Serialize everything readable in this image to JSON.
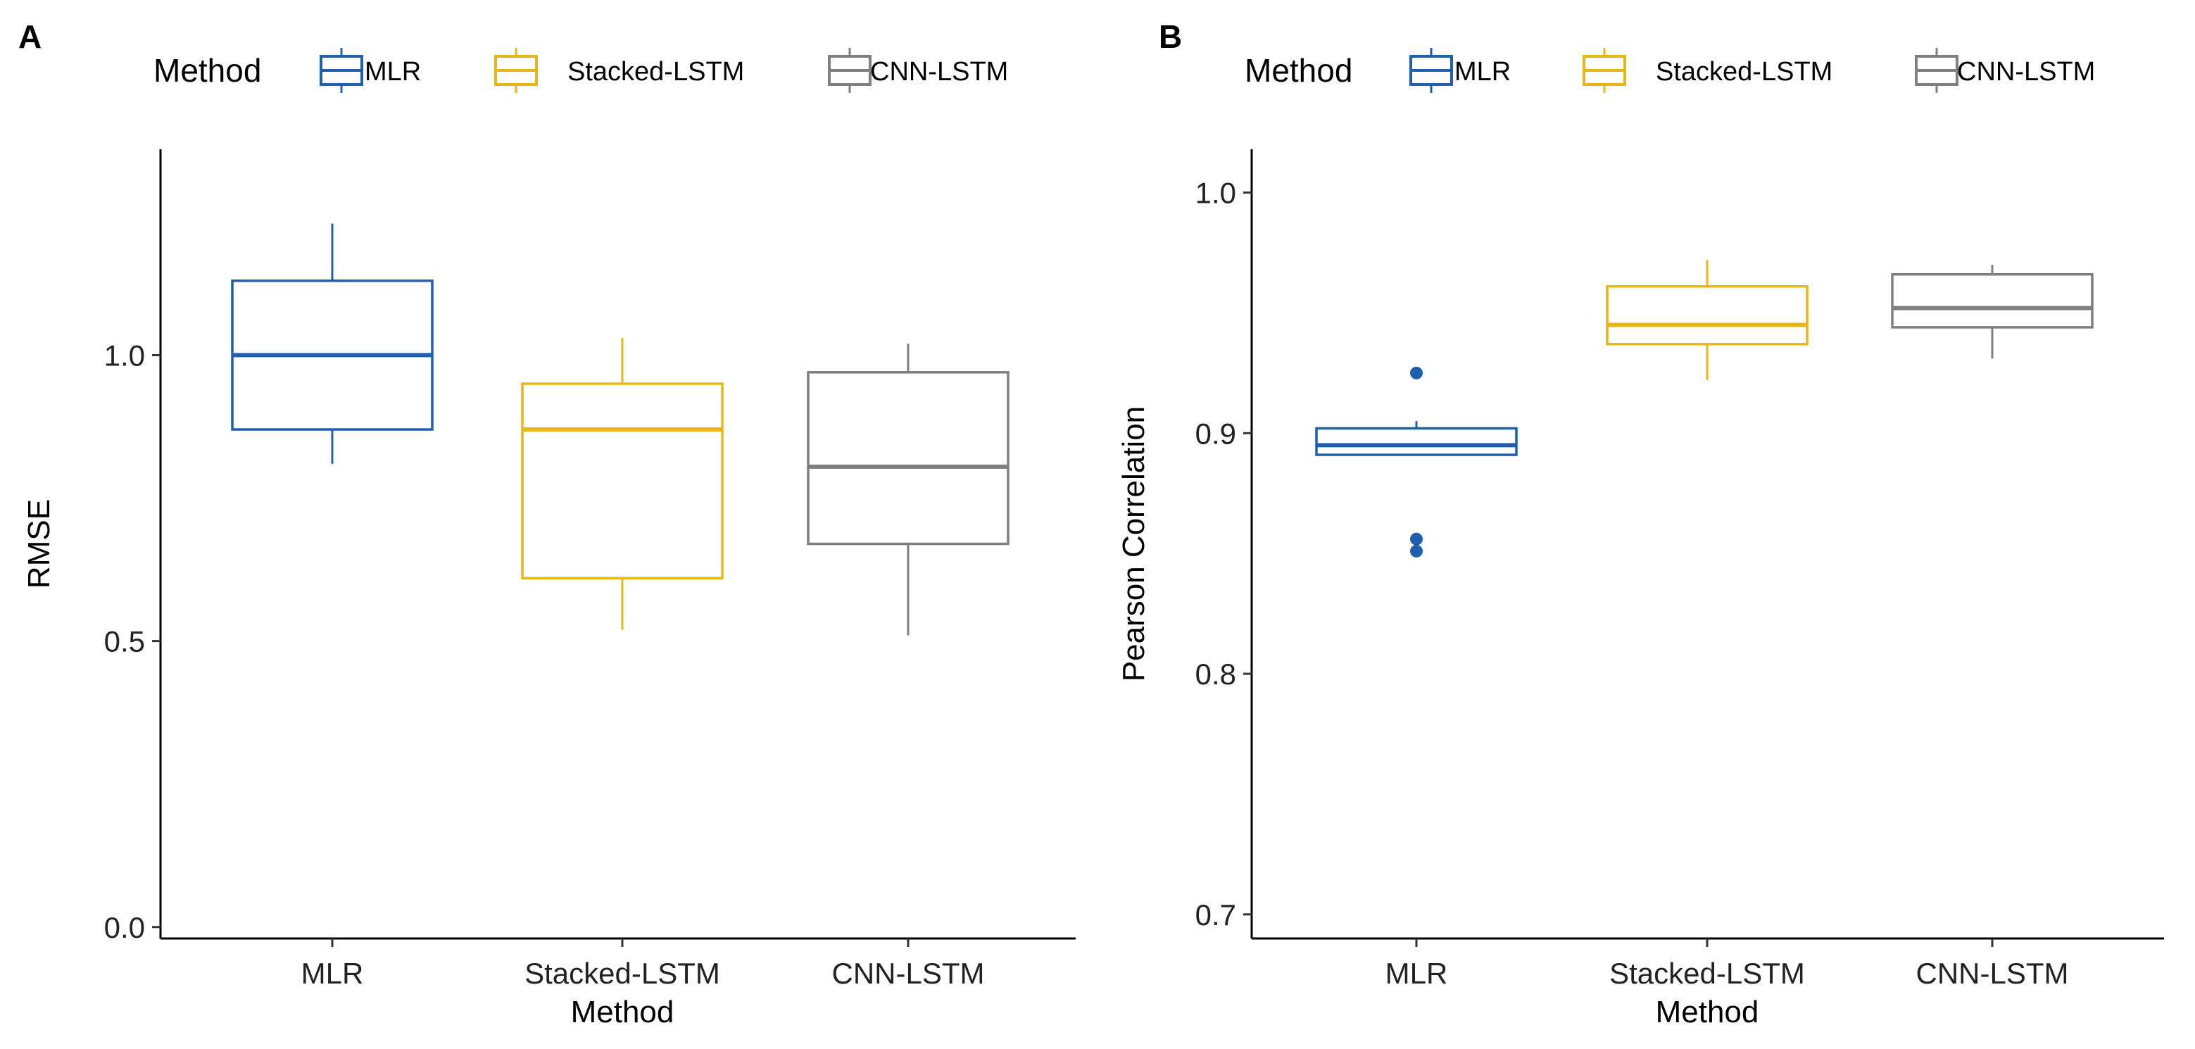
{
  "legend": {
    "title": "Method",
    "entries": [
      {
        "label": "MLR",
        "color": "#1F5FAD"
      },
      {
        "label": "Stacked-LSTM",
        "color": "#E8B716"
      },
      {
        "label": "CNN-LSTM",
        "color": "#7F7F7F"
      }
    ]
  },
  "chart_data": [
    {
      "type": "boxplot",
      "panel_label": "A",
      "xlabel": "Method",
      "ylabel": "RMSE",
      "categories": [
        "MLR",
        "Stacked-LSTM",
        "CNN-LSTM"
      ],
      "ylim": [
        -0.02,
        1.36
      ],
      "yticks": [
        0.0,
        0.5,
        1.0
      ],
      "ytick_labels": [
        "0.0",
        "0.5",
        "1.0"
      ],
      "boxes": [
        {
          "name": "MLR",
          "color": "#1F5FAD",
          "whisker_low": 0.81,
          "q1": 0.87,
          "median": 1.0,
          "q3": 1.13,
          "whisker_high": 1.23,
          "outliers": []
        },
        {
          "name": "Stacked-LSTM",
          "color": "#E8B716",
          "whisker_low": 0.52,
          "q1": 0.61,
          "median": 0.87,
          "q3": 0.95,
          "whisker_high": 1.03,
          "outliers": []
        },
        {
          "name": "CNN-LSTM",
          "color": "#7F7F7F",
          "whisker_low": 0.51,
          "q1": 0.67,
          "median": 0.805,
          "q3": 0.97,
          "whisker_high": 1.02,
          "outliers": []
        }
      ]
    },
    {
      "type": "boxplot",
      "panel_label": "B",
      "xlabel": "Method",
      "ylabel": "Pearson Correlation",
      "categories": [
        "MLR",
        "Stacked-LSTM",
        "CNN-LSTM"
      ],
      "ylim": [
        0.69,
        1.018
      ],
      "yticks": [
        0.7,
        0.8,
        0.9,
        1.0
      ],
      "ytick_labels": [
        "0.7",
        "0.8",
        "0.9",
        "1.0"
      ],
      "boxes": [
        {
          "name": "MLR",
          "color": "#1F5FAD",
          "whisker_low": 0.891,
          "q1": 0.891,
          "median": 0.895,
          "q3": 0.902,
          "whisker_high": 0.905,
          "outliers": [
            0.925,
            0.856,
            0.851
          ]
        },
        {
          "name": "Stacked-LSTM",
          "color": "#E8B716",
          "whisker_low": 0.922,
          "q1": 0.937,
          "median": 0.945,
          "q3": 0.961,
          "whisker_high": 0.972,
          "outliers": []
        },
        {
          "name": "CNN-LSTM",
          "color": "#7F7F7F",
          "whisker_low": 0.931,
          "q1": 0.944,
          "median": 0.952,
          "q3": 0.966,
          "whisker_high": 0.97,
          "outliers": []
        }
      ]
    }
  ]
}
